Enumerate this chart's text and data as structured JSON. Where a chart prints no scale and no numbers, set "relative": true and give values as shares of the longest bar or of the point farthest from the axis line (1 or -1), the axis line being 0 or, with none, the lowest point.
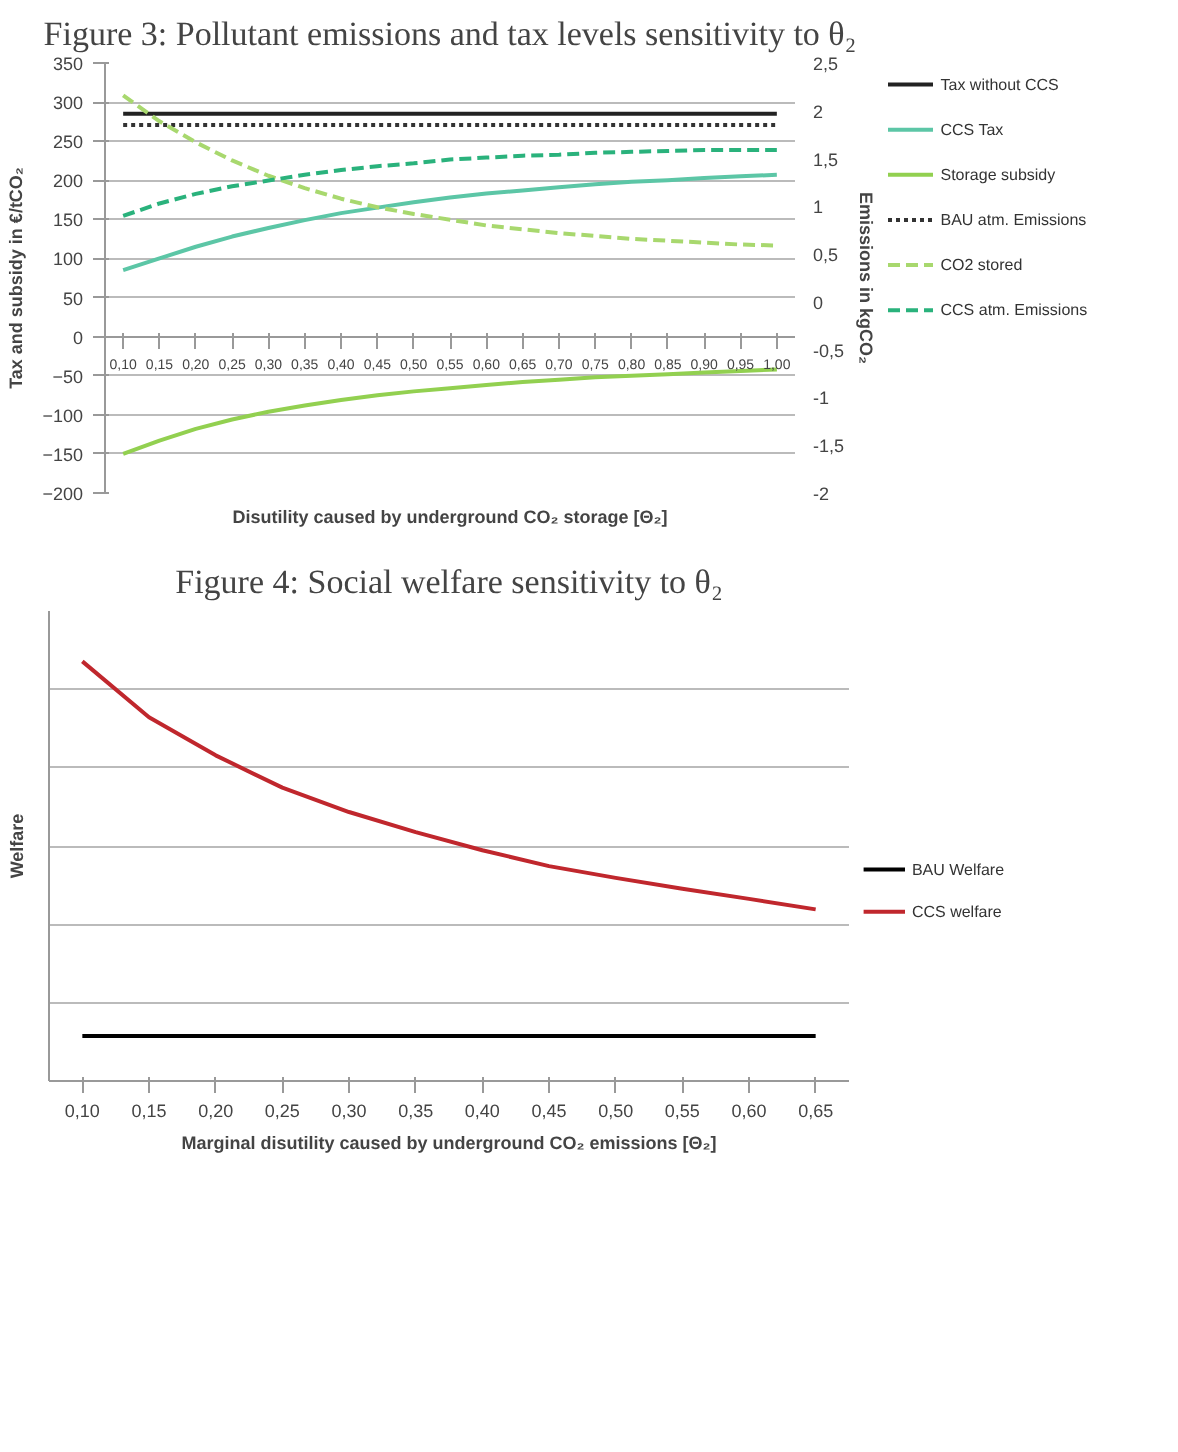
{
  "chart_data": [
    {
      "type": "line",
      "title": "Figure 3: Pollutant emissions and tax levels sensitivity to θ₂",
      "xlabel": "Disutility caused by underground CO₂ storage [Θ₂]",
      "ylabel": "Tax and subsidy in €/tCO₂",
      "y2label": "Emissions in kgCO₂",
      "categories": [
        "0,10",
        "0,15",
        "0,20",
        "0,25",
        "0,30",
        "0,35",
        "0,40",
        "0,45",
        "0,50",
        "0,55",
        "0,60",
        "0,65",
        "0,70",
        "0,75",
        "0,80",
        "0,85",
        "0,90",
        "0,95",
        "1,00"
      ],
      "series": [
        {
          "name": "Tax without CCS",
          "color": "#222222",
          "line_style": "solid",
          "values": [
            285,
            285,
            285,
            285,
            285,
            285,
            285,
            285,
            285,
            285,
            285,
            285,
            285,
            285,
            285,
            285,
            285,
            285,
            285
          ]
        },
        {
          "name": "CCS Tax",
          "color": "#5cc6a6",
          "line_style": "solid",
          "values": [
            85,
            100,
            115,
            128,
            139,
            149,
            158,
            165,
            172,
            178,
            183,
            187,
            191,
            195,
            198,
            200,
            203,
            205,
            207
          ]
        },
        {
          "name": "Storage subsidy",
          "color": "#92d050",
          "line_style": "solid",
          "values": [
            -150,
            -133,
            -118,
            -106,
            -96,
            -88,
            -81,
            -75,
            -70,
            -66,
            -62,
            -58,
            -55,
            -52,
            -50,
            -48,
            -46,
            -44,
            -42
          ]
        },
        {
          "name": "BAU atm. Emissions",
          "color": "#333333",
          "line_style": "dotted",
          "axis": "y2",
          "values": [
            1.85,
            1.85,
            1.85,
            1.85,
            1.85,
            1.85,
            1.85,
            1.85,
            1.85,
            1.85,
            1.85,
            1.85,
            1.85,
            1.85,
            1.85,
            1.85,
            1.85,
            1.85,
            1.85
          ]
        },
        {
          "name": "CO2 stored",
          "color": "#a8d86e",
          "line_style": "dashed",
          "axis": "y2",
          "values": [
            2.16,
            1.89,
            1.67,
            1.48,
            1.32,
            1.19,
            1.08,
            0.99,
            0.92,
            0.86,
            0.8,
            0.76,
            0.72,
            0.69,
            0.66,
            0.64,
            0.62,
            0.6,
            0.59
          ]
        },
        {
          "name": "CCS atm. Emissions",
          "color": "#2ab27c",
          "line_style": "dashed",
          "axis": "y2",
          "values": [
            0.9,
            1.03,
            1.13,
            1.21,
            1.27,
            1.33,
            1.38,
            1.42,
            1.45,
            1.49,
            1.51,
            1.53,
            1.54,
            1.56,
            1.57,
            1.58,
            1.59,
            1.59,
            1.59
          ]
        }
      ],
      "ylim": [
        -200,
        350
      ],
      "yticks": [
        -200,
        -150,
        -100,
        -50,
        0,
        50,
        100,
        150,
        200,
        250,
        300,
        350
      ],
      "y2lim": [
        -2,
        2.5
      ],
      "y2ticks": [
        {
          "value": -2,
          "label": "-2"
        },
        {
          "value": -1.5,
          "label": "-1,5"
        },
        {
          "value": -1,
          "label": "-1"
        },
        {
          "value": -0.5,
          "label": "-0,5"
        },
        {
          "value": 0,
          "label": "0"
        },
        {
          "value": 0.5,
          "label": "0,5"
        },
        {
          "value": 1,
          "label": "1"
        },
        {
          "value": 1.5,
          "label": "1,5"
        },
        {
          "value": 2,
          "label": "2"
        },
        {
          "value": 2.5,
          "label": "2,5"
        }
      ],
      "grid": "y",
      "legend": "right"
    },
    {
      "type": "line",
      "title": "Figure 4: Social welfare sensitivity to θ₂",
      "xlabel": "Marginal disutility caused by underground CO₂ emissions [Θ₂]",
      "ylabel": "Welfare",
      "relative": true,
      "categories": [
        "0,10",
        "0,15",
        "0,20",
        "0,25",
        "0,30",
        "0,35",
        "0,40",
        "0,45",
        "0,50",
        "0,55",
        "0,60",
        "0,65"
      ],
      "series": [
        {
          "name": "BAU Welfare",
          "color": "#000000",
          "values": [
            0.107,
            0.107,
            0.107,
            0.107,
            0.107,
            0.107,
            0.107,
            0.107,
            0.107,
            0.107,
            0.107,
            0.107
          ]
        },
        {
          "name": "CCS welfare",
          "color": "#c0272d",
          "values": [
            1,
            0.867,
            0.776,
            0.699,
            0.641,
            0.593,
            0.55,
            0.512,
            0.484,
            0.458,
            0.434,
            0.409
          ]
        }
      ],
      "grid": "y",
      "legend": "right"
    }
  ]
}
